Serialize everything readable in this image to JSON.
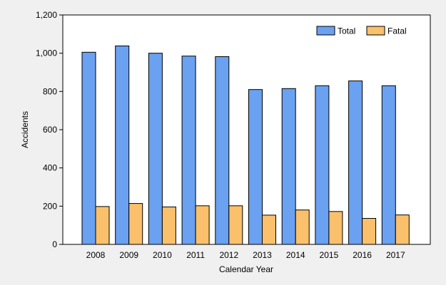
{
  "colors": {
    "background": "#f0f0f0",
    "plot_background": "#ffffff",
    "total": "#6aa1f0",
    "fatal": "#fac06b",
    "border": "#000000"
  },
  "chart_data": {
    "type": "bar",
    "title": "",
    "xlabel": "Calendar Year",
    "ylabel": "Accidents",
    "categories": [
      "2008",
      "2009",
      "2010",
      "2011",
      "2012",
      "2013",
      "2014",
      "2015",
      "2016",
      "2017"
    ],
    "series": [
      {
        "name": "Total",
        "color": "#6aa1f0",
        "values": [
          1005,
          1038,
          1000,
          985,
          982,
          810,
          815,
          830,
          855,
          830
        ]
      },
      {
        "name": "Fatal",
        "color": "#fac06b",
        "values": [
          198,
          214,
          196,
          202,
          202,
          153,
          180,
          172,
          136,
          154
        ]
      }
    ],
    "ylim": [
      0,
      1200
    ],
    "yticks": [
      0,
      200,
      400,
      600,
      800,
      1000,
      1200
    ],
    "ytick_labels": [
      "0",
      "200",
      "400",
      "600",
      "800",
      "1,000",
      "1,200"
    ],
    "grid": false,
    "legend_position": "top-right"
  }
}
